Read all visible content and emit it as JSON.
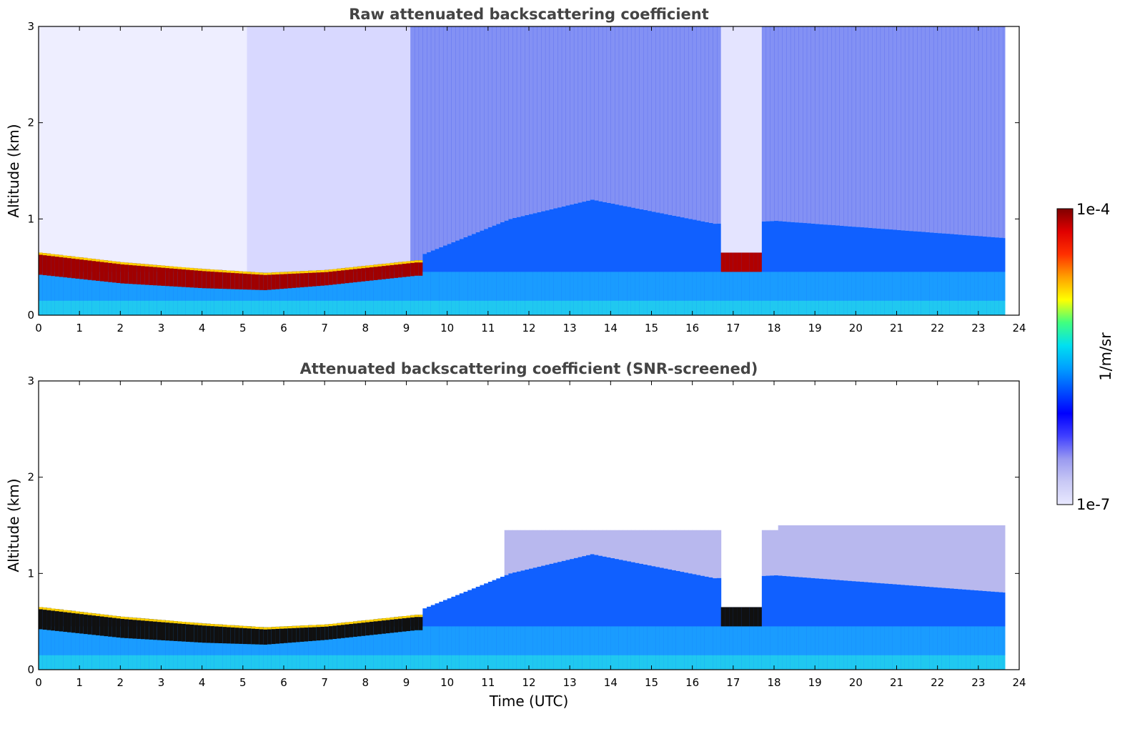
{
  "chart_data": [
    {
      "type": "heatmap",
      "title": "Raw attenuated backscattering coefficient",
      "xlabel": "",
      "ylabel": "Altitude (km)",
      "xlim": [
        0,
        24
      ],
      "ylim": [
        0,
        3
      ],
      "x_ticks": [
        "0",
        "1",
        "2",
        "3",
        "4",
        "5",
        "6",
        "7",
        "8",
        "9",
        "10",
        "11",
        "12",
        "13",
        "14",
        "15",
        "16",
        "17",
        "18",
        "19",
        "20",
        "21",
        "22",
        "23",
        "24"
      ],
      "y_ticks": [
        "0",
        "1",
        "2",
        "3"
      ],
      "data_end_time": 23.65,
      "cloud_base_km": [
        {
          "t": 0,
          "top": 0.65,
          "base": 0.42
        },
        {
          "t": 2,
          "top": 0.55,
          "base": 0.33
        },
        {
          "t": 4,
          "top": 0.48,
          "base": 0.28
        },
        {
          "t": 5.5,
          "top": 0.44,
          "base": 0.26
        },
        {
          "t": 7,
          "top": 0.47,
          "base": 0.31
        },
        {
          "t": 9.2,
          "top": 0.57,
          "base": 0.41
        }
      ],
      "boundary_layer_top_km": [
        {
          "t": 9.3,
          "h": 0.62
        },
        {
          "t": 11.5,
          "h": 1.0
        },
        {
          "t": 13.5,
          "h": 1.2
        },
        {
          "t": 16.5,
          "h": 0.95
        },
        {
          "t": 18,
          "h": 0.98
        },
        {
          "t": 23.65,
          "h": 0.8
        }
      ],
      "cloud_17h": {
        "t_start": 16.6,
        "t_end": 17.6,
        "top": 0.65,
        "base": 0.45
      }
    },
    {
      "type": "heatmap",
      "title": "Attenuated backscattering coefficient (SNR-screened)",
      "xlabel": "Time (UTC)",
      "ylabel": "Altitude (km)",
      "xlim": [
        0,
        24
      ],
      "ylim": [
        0,
        3
      ],
      "x_ticks": [
        "0",
        "1",
        "2",
        "3",
        "4",
        "5",
        "6",
        "7",
        "8",
        "9",
        "10",
        "11",
        "12",
        "13",
        "14",
        "15",
        "16",
        "17",
        "18",
        "19",
        "20",
        "21",
        "22",
        "23",
        "24"
      ],
      "y_ticks": [
        "0",
        "1",
        "2",
        "3"
      ],
      "data_end_time": 23.65
    }
  ],
  "colorbar": {
    "label": "1/m/sr",
    "max_label": "1e-4",
    "min_label": "1e-7",
    "colors": [
      "#e8e8ff",
      "#c9c9f5",
      "#9a9af0",
      "#4040ff",
      "#0000ff",
      "#0050ff",
      "#00a0ff",
      "#00e0f0",
      "#40ff80",
      "#ffff00",
      "#ffa000",
      "#ff3000",
      "#e00000",
      "#800000"
    ]
  }
}
